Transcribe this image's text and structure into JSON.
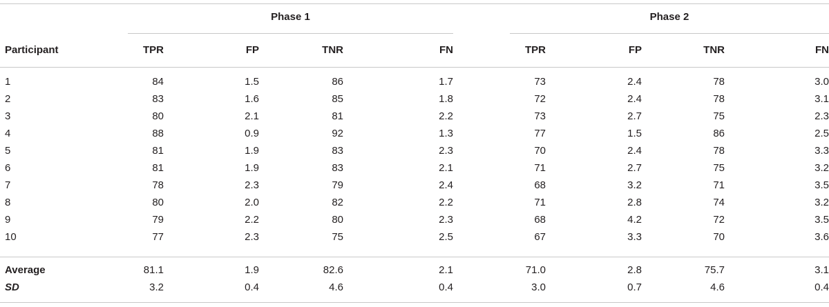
{
  "table": {
    "row_header": "Participant",
    "phases": [
      {
        "label": "Phase 1",
        "columns": [
          "TPR",
          "FP",
          "TNR",
          "FN"
        ]
      },
      {
        "label": "Phase 2",
        "columns": [
          "TPR",
          "FP",
          "TNR",
          "FN"
        ]
      }
    ],
    "rows": [
      {
        "participant": "1",
        "values": [
          "84",
          "1.5",
          "86",
          "1.7",
          "73",
          "2.4",
          "78",
          "3.0"
        ]
      },
      {
        "participant": "2",
        "values": [
          "83",
          "1.6",
          "85",
          "1.8",
          "72",
          "2.4",
          "78",
          "3.1"
        ]
      },
      {
        "participant": "3",
        "values": [
          "80",
          "2.1",
          "81",
          "2.2",
          "73",
          "2.7",
          "75",
          "2.3"
        ]
      },
      {
        "participant": "4",
        "values": [
          "88",
          "0.9",
          "92",
          "1.3",
          "77",
          "1.5",
          "86",
          "2.5"
        ]
      },
      {
        "participant": "5",
        "values": [
          "81",
          "1.9",
          "83",
          "2.3",
          "70",
          "2.4",
          "78",
          "3.3"
        ]
      },
      {
        "participant": "6",
        "values": [
          "81",
          "1.9",
          "83",
          "2.1",
          "71",
          "2.7",
          "75",
          "3.2"
        ]
      },
      {
        "participant": "7",
        "values": [
          "78",
          "2.3",
          "79",
          "2.4",
          "68",
          "3.2",
          "71",
          "3.5"
        ]
      },
      {
        "participant": "8",
        "values": [
          "80",
          "2.0",
          "82",
          "2.2",
          "71",
          "2.8",
          "74",
          "3.2"
        ]
      },
      {
        "participant": "9",
        "values": [
          "79",
          "2.2",
          "80",
          "2.3",
          "68",
          "4.2",
          "72",
          "3.5"
        ]
      },
      {
        "participant": "10",
        "values": [
          "77",
          "2.3",
          "75",
          "2.5",
          "67",
          "3.3",
          "70",
          "3.6"
        ]
      }
    ],
    "summary": [
      {
        "label": "Average",
        "values": [
          "81.1",
          "1.9",
          "82.6",
          "2.1",
          "71.0",
          "2.8",
          "75.7",
          "3.1"
        ]
      },
      {
        "label": "SD",
        "values": [
          "3.2",
          "0.4",
          "4.6",
          "0.4",
          "3.0",
          "0.7",
          "4.6",
          "0.4"
        ]
      }
    ]
  }
}
